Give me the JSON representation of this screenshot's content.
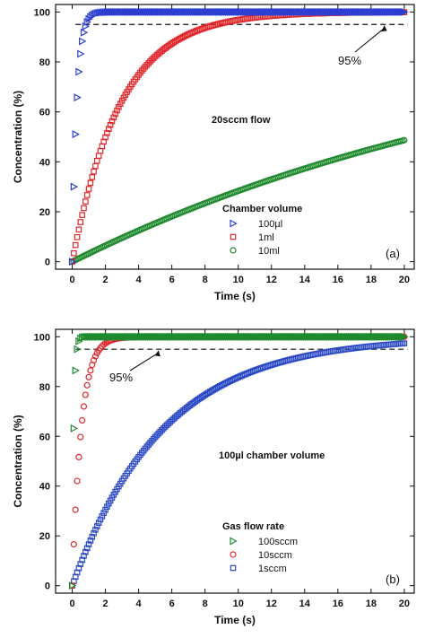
{
  "chart_data": [
    {
      "type": "scatter",
      "panel_label": "(a)",
      "xlabel": "Time (s)",
      "ylabel": "Concentration (%)",
      "xlim": [
        -1,
        20.6
      ],
      "ylim": [
        -3,
        103
      ],
      "xticks": [
        0,
        2,
        4,
        6,
        8,
        10,
        12,
        14,
        16,
        18,
        20
      ],
      "yticks": [
        0,
        20,
        40,
        60,
        80,
        100
      ],
      "annotation": "20sccm flow",
      "threshold": {
        "value": 95,
        "label": "95%",
        "arrow_x": 18.8
      },
      "legend": {
        "title": "Chamber volume",
        "placement": "lower-center"
      },
      "series": [
        {
          "name": "100µl",
          "marker": "triangle-right",
          "color": "#2b3fd0",
          "model": "1 - exp(-t/tau)",
          "tau": 0.28,
          "t_end": 20,
          "dt": 0.1,
          "sample_points": [
            [
              0.2,
              28
            ],
            [
              0.4,
              49
            ],
            [
              0.5,
              63
            ],
            [
              0.6,
              73
            ],
            [
              0.7,
              81
            ],
            [
              0.8,
              90
            ],
            [
              1.0,
              95
            ],
            [
              1.5,
              99.5
            ],
            [
              2.0,
              100
            ]
          ]
        },
        {
          "name": "1ml",
          "marker": "square",
          "color": "#e0262a",
          "model": "1 - exp(-t/tau)",
          "tau": 2.9,
          "t_end": 20,
          "dt": 0.1,
          "sample_points": [
            [
              0,
              0
            ],
            [
              1,
              28
            ],
            [
              2,
              50
            ],
            [
              3,
              64
            ],
            [
              4,
              75
            ],
            [
              6,
              88
            ],
            [
              8,
              94
            ],
            [
              10,
              97
            ],
            [
              14,
              99.2
            ],
            [
              20,
              100
            ]
          ]
        },
        {
          "name": "10ml",
          "marker": "circle",
          "color": "#1f8a2e",
          "model": "1 - exp(-t/tau)",
          "tau": 30,
          "t_end": 20,
          "dt": 0.1,
          "sample_points": [
            [
              0,
              0
            ],
            [
              4,
              12.5
            ],
            [
              8,
              23.5
            ],
            [
              12,
              33
            ],
            [
              16,
              41.5
            ],
            [
              20,
              48.5
            ]
          ]
        }
      ]
    },
    {
      "type": "scatter",
      "panel_label": "(b)",
      "xlabel": "Time (s)",
      "ylabel": "Concentration (%)",
      "xlim": [
        -1,
        20.6
      ],
      "ylim": [
        -3,
        103
      ],
      "xticks": [
        0,
        2,
        4,
        6,
        8,
        10,
        12,
        14,
        16,
        18,
        20
      ],
      "yticks": [
        0,
        20,
        40,
        60,
        80,
        100
      ],
      "annotation": "100µl chamber volume",
      "threshold": {
        "value": 95,
        "label": "95%",
        "arrow_x": 5.2
      },
      "legend": {
        "title": "Gas flow rate",
        "placement": "lower-center"
      },
      "series": [
        {
          "name": "100sccm",
          "marker": "triangle-right",
          "color": "#1f8a2e",
          "model": "1 - exp(-t/tau)",
          "tau": 0.1,
          "t_end": 20,
          "dt": 0.1,
          "sample_points": [
            [
              0.1,
              81
            ],
            [
              0.2,
              96
            ],
            [
              0.3,
              99
            ],
            [
              0.5,
              100
            ],
            [
              20,
              100
            ]
          ]
        },
        {
          "name": "10sccm",
          "marker": "circle",
          "color": "#e0262a",
          "model": "1 - exp(-t/tau)",
          "tau": 0.55,
          "t_end": 20,
          "dt": 0.1,
          "sample_points": [
            [
              0.2,
              15
            ],
            [
              0.4,
              29
            ],
            [
              0.6,
              42
            ],
            [
              1.0,
              70
            ],
            [
              1.5,
              86
            ],
            [
              2.0,
              95
            ],
            [
              3.0,
              99.5
            ],
            [
              20,
              100
            ]
          ]
        },
        {
          "name": "1sccm",
          "marker": "square",
          "color": "#2a48c4",
          "model": "1 - exp(-t/tau)",
          "tau": 5.5,
          "t_end": 20,
          "dt": 0.1,
          "sample_points": [
            [
              0,
              0
            ],
            [
              2,
              30
            ],
            [
              4,
              52
            ],
            [
              6,
              66
            ],
            [
              8,
              77
            ],
            [
              10,
              84
            ],
            [
              14,
              92.5
            ],
            [
              18,
              96
            ],
            [
              20,
              97
            ]
          ]
        }
      ]
    }
  ]
}
